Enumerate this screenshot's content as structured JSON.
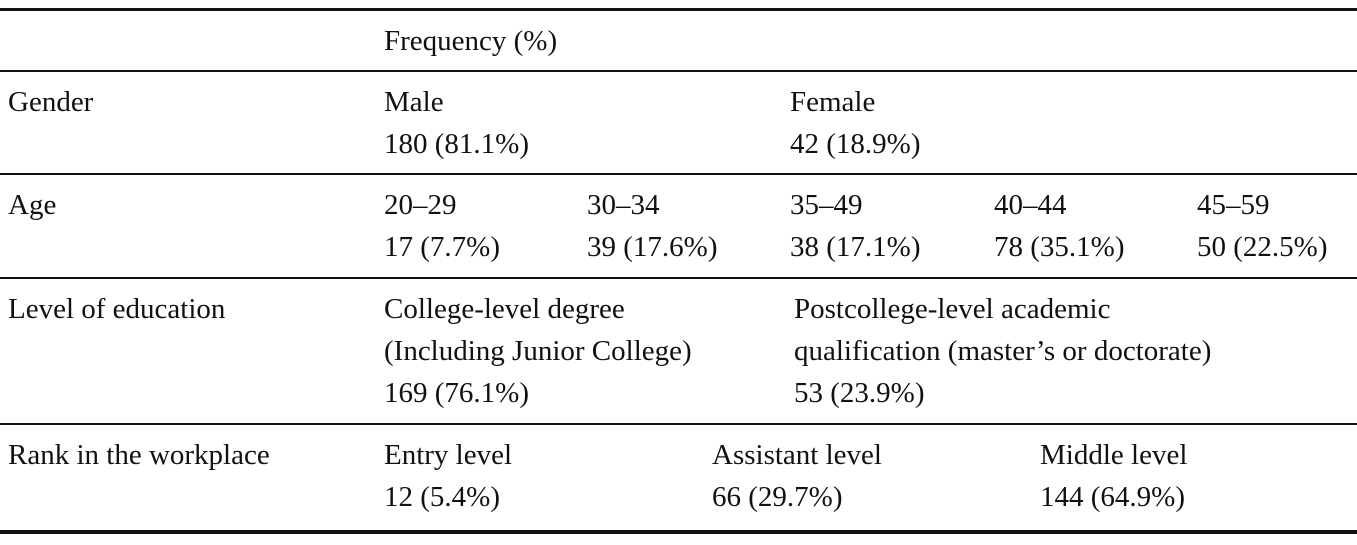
{
  "header": {
    "column_title": "Frequency (%)"
  },
  "rows": {
    "gender": {
      "label": "Gender",
      "items": [
        {
          "category": "Male",
          "value": "180 (81.1%)"
        },
        {
          "category": "Female",
          "value": "42 (18.9%)"
        }
      ]
    },
    "age": {
      "label": "Age",
      "items": [
        {
          "category": "20–29",
          "value": "17 (7.7%)"
        },
        {
          "category": "30–34",
          "value": "39 (17.6%)"
        },
        {
          "category": "35–49",
          "value": "38 (17.1%)"
        },
        {
          "category": "40–44",
          "value": "78 (35.1%)"
        },
        {
          "category": "45–59",
          "value": "50 (22.5%)"
        }
      ]
    },
    "education": {
      "label": "Level of education",
      "items": [
        {
          "category_line1": "College-level degree",
          "category_line2": "(Including Junior College)",
          "value": "169 (76.1%)"
        },
        {
          "category_line1": "Postcollege-level academic",
          "category_line2": "qualification (master’s or doctorate)",
          "value": "53 (23.9%)"
        }
      ]
    },
    "rank": {
      "label": "Rank in the workplace",
      "items": [
        {
          "category": "Entry level",
          "value": "12 (5.4%)"
        },
        {
          "category": "Assistant level",
          "value": "66 (29.7%)"
        },
        {
          "category": "Middle level",
          "value": "144 (64.9%)"
        }
      ]
    }
  }
}
